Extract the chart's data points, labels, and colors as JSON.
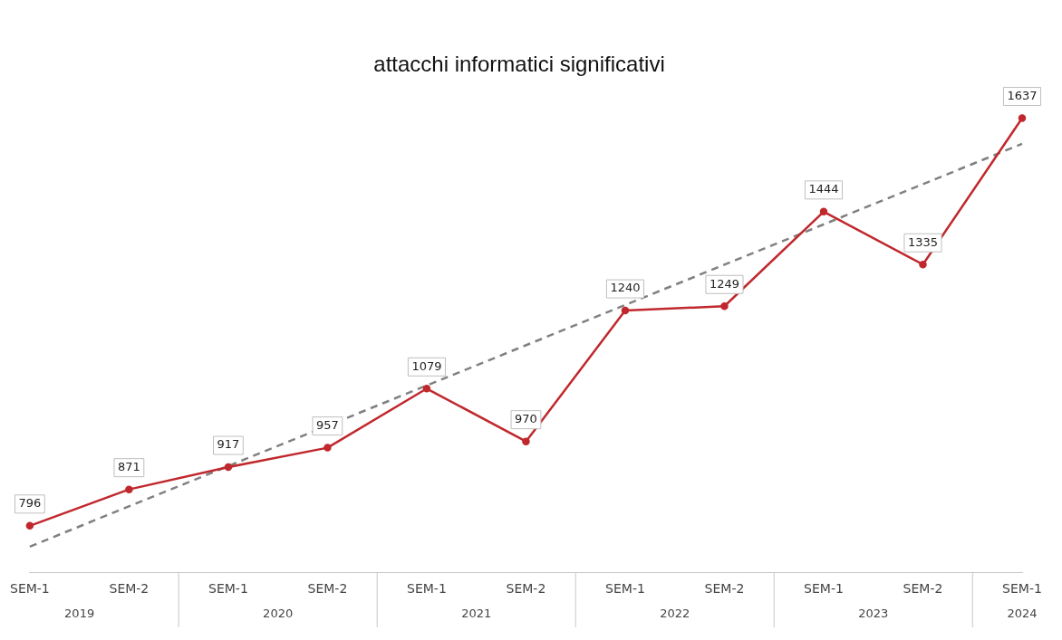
{
  "chart_data": {
    "type": "line",
    "title": "attacchi informatici significativi",
    "categories": [
      "SEM-1",
      "SEM-2",
      "SEM-1",
      "SEM-2",
      "SEM-1",
      "SEM-2",
      "SEM-1",
      "SEM-2",
      "SEM-1",
      "SEM-2",
      "SEM-1"
    ],
    "series": [
      {
        "color": "#c0282d",
        "values": [
          796,
          871,
          917,
          957,
          1079,
          970,
          1240,
          1249,
          1444,
          1335,
          1637
        ],
        "value_labels": [
          "796",
          "871",
          "917",
          "957",
          "1079",
          "970",
          "1240",
          "1249",
          "1444",
          "1335",
          "1637"
        ],
        "marker": "circle",
        "line_style": "solid"
      },
      {
        "type": "line",
        "color": "#808080",
        "values": [
          753,
          null,
          null,
          null,
          null,
          null,
          null,
          null,
          null,
          null,
          1584
        ],
        "marker": "none",
        "line_style": "dashed"
      }
    ],
    "annotations": [
      "2019",
      "2020",
      "2021",
      "2022",
      "2023",
      "2024"
    ],
    "grid": false,
    "legend": false
  }
}
